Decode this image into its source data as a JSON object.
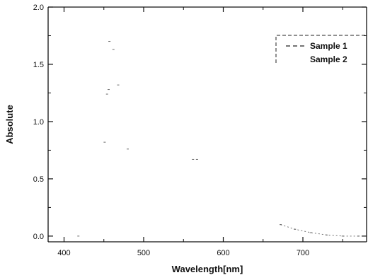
{
  "chart_data": {
    "type": "line",
    "title": "",
    "xlabel": "Wavelength[nm]",
    "ylabel": "Absolute",
    "xlim": [
      380,
      780
    ],
    "ylim": [
      -0.05,
      2.0
    ],
    "xticks": [
      {
        "value": 400,
        "label": "400"
      },
      {
        "value": 500,
        "label": "500"
      },
      {
        "value": 600,
        "label": "600"
      },
      {
        "value": 700,
        "label": "700"
      }
    ],
    "yticks": [
      {
        "value": 0.0,
        "label": "0.0"
      },
      {
        "value": 0.5,
        "label": "0.5"
      },
      {
        "value": 1.0,
        "label": "1.0"
      },
      {
        "value": 1.5,
        "label": "1.5"
      },
      {
        "value": 2.0,
        "label": "2.0"
      }
    ],
    "grid": false,
    "legend_position": "top-right",
    "series": [
      {
        "name": "Sample 1",
        "style": "dashed",
        "color": "#222222",
        "x": [
          418,
          451,
          454,
          456,
          457,
          462,
          468,
          480,
          562,
          567,
          672,
          690,
          710,
          730,
          750,
          770
        ],
        "y": [
          0.0,
          0.82,
          1.24,
          1.28,
          1.7,
          1.63,
          1.32,
          0.76,
          0.67,
          0.67,
          0.1,
          0.06,
          0.03,
          0.01,
          0.0,
          0.0
        ]
      },
      {
        "name": "Sample 2",
        "style": "solid",
        "color": "#444444",
        "x": [],
        "y": []
      }
    ]
  }
}
